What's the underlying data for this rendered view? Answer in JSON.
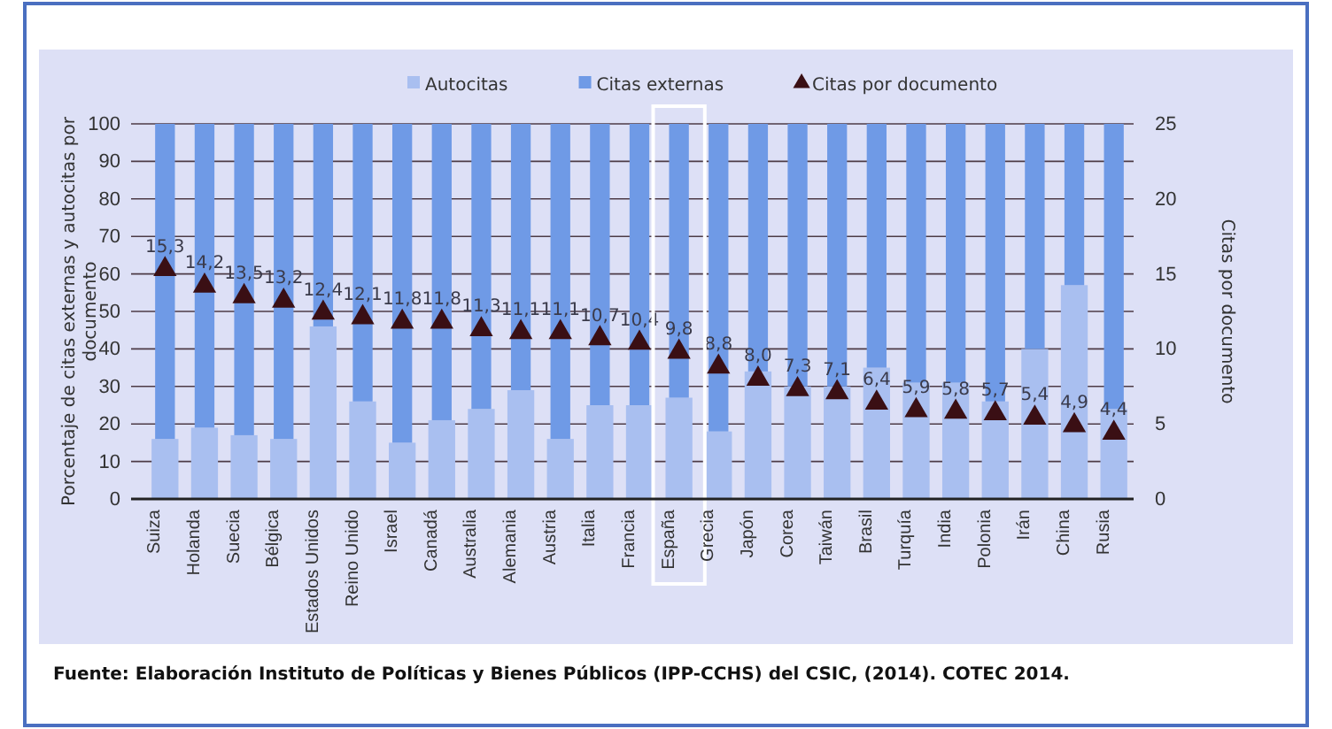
{
  "chart_data": {
    "type": "bar",
    "stacked": true,
    "categories": [
      "Suiza",
      "Holanda",
      "Suecia",
      "Bélgica",
      "Estados Unidos",
      "Reino Unido",
      "Israel",
      "Canadá",
      "Australia",
      "Alemania",
      "Austria",
      "Italia",
      "Francia",
      "España",
      "Grecia",
      "Japón",
      "Corea",
      "Taiwán",
      "Brasil",
      "Turquía",
      "India",
      "Polonia",
      "Irán",
      "China",
      "Rusia"
    ],
    "series": [
      {
        "name": "Autocitas",
        "color": "#a9bff0",
        "values": [
          16,
          19,
          17,
          16,
          46,
          26,
          15,
          21,
          24,
          29,
          16,
          25,
          25,
          27,
          18,
          34,
          30,
          30,
          35,
          31,
          31,
          26,
          40,
          57,
          24
        ]
      },
      {
        "name": "Citas externas",
        "color": "#6f9ae6",
        "values": [
          84,
          81,
          83,
          84,
          54,
          74,
          85,
          79,
          76,
          71,
          84,
          75,
          75,
          73,
          82,
          66,
          70,
          70,
          65,
          69,
          69,
          74,
          60,
          43,
          76
        ]
      },
      {
        "name": "Citas por documento",
        "type": "scatter",
        "axis": "y2",
        "color": "#3a0f14",
        "marker": "triangle",
        "data_labels": true,
        "value_labels": [
          "15,3",
          "14,2",
          "13,5",
          "13,2",
          "12,4",
          "12,1",
          "11,8",
          "11,8",
          "11,3",
          "11,1",
          "11,1",
          "10,7",
          "10,4",
          "9,8",
          "8,8",
          "8,0",
          "7,3",
          "7,1",
          "6,4",
          "5,9",
          "5,8",
          "5,7",
          "5,4",
          "4,9",
          "4,4"
        ],
        "values": [
          15.3,
          14.2,
          13.5,
          13.2,
          12.4,
          12.1,
          11.8,
          11.8,
          11.3,
          11.1,
          11.1,
          10.7,
          10.4,
          9.8,
          8.8,
          8.0,
          7.3,
          7.1,
          6.4,
          5.9,
          5.8,
          5.7,
          5.4,
          4.9,
          4.4
        ]
      }
    ],
    "ylabel": "Porcentaje de citas externas y autocitas por documento",
    "y2label": "Citas por documento",
    "ylim": [
      0,
      100
    ],
    "yticks": [
      0,
      10,
      20,
      30,
      40,
      50,
      60,
      70,
      80,
      90,
      100
    ],
    "y2lim": [
      0,
      25
    ],
    "y2ticks": [
      0,
      5,
      10,
      15,
      20,
      25
    ],
    "grid": "y",
    "legend": "top",
    "annotations": [
      "Fuente: Elaboración Instituto de Políticas y Bienes Públicos (IPP-CCHS) del CSIC, (2014). COTEC 2014."
    ]
  }
}
